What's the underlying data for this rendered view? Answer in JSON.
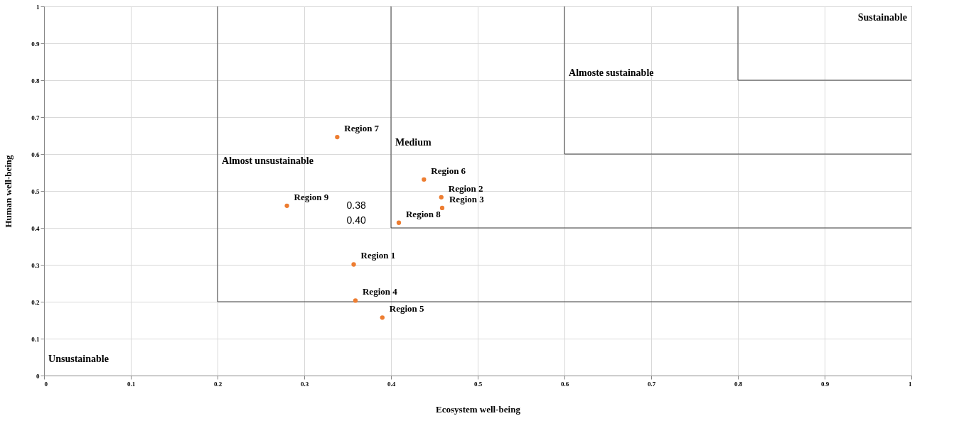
{
  "chart_data": {
    "type": "scatter",
    "xlabel": "Ecosystem well-being",
    "ylabel": "Human well-being",
    "xlim": [
      0,
      1
    ],
    "ylim": [
      0,
      1
    ],
    "xticks": [
      0,
      0.1,
      0.2,
      0.3,
      0.4,
      0.5,
      0.6,
      0.7,
      0.8,
      0.9,
      1
    ],
    "yticks": [
      0,
      0.1,
      0.2,
      0.3,
      0.4,
      0.5,
      0.6,
      0.7,
      0.8,
      0.9,
      1
    ],
    "grid": true,
    "marker": "circle",
    "series": [
      {
        "type": "line",
        "marker": "none",
        "color": "#404040",
        "x": [
          0.2,
          0.2,
          1
        ],
        "values": [
          1,
          0.2,
          0.2
        ]
      },
      {
        "type": "line",
        "marker": "none",
        "color": "#404040",
        "x": [
          0.4,
          0.4,
          1
        ],
        "values": [
          1,
          0.4,
          0.4
        ]
      },
      {
        "type": "line",
        "marker": "none",
        "color": "#404040",
        "x": [
          0.6,
          0.6,
          1
        ],
        "values": [
          1,
          0.6,
          0.6
        ]
      },
      {
        "type": "line",
        "marker": "none",
        "color": "#404040",
        "x": [
          0.8,
          0.8,
          1
        ],
        "values": [
          1,
          0.8,
          0.8
        ]
      },
      {
        "name": "Region 1",
        "color": "#ed7d31",
        "x": [
          0.357
        ],
        "values": [
          0.301
        ]
      },
      {
        "name": "Region 2",
        "color": "#ed7d31",
        "x": [
          0.458
        ],
        "values": [
          0.483
        ]
      },
      {
        "name": "Region 3",
        "color": "#ed7d31",
        "x": [
          0.459
        ],
        "values": [
          0.454
        ]
      },
      {
        "name": "Region 4",
        "color": "#ed7d31",
        "x": [
          0.359
        ],
        "values": [
          0.203
        ]
      },
      {
        "name": "Region 5",
        "color": "#ed7d31",
        "x": [
          0.39
        ],
        "values": [
          0.157
        ]
      },
      {
        "name": "Region 6",
        "color": "#ed7d31",
        "x": [
          0.438
        ],
        "values": [
          0.531
        ]
      },
      {
        "name": "Region 7",
        "color": "#ed7d31",
        "x": [
          0.338
        ],
        "values": [
          0.646
        ]
      },
      {
        "name": "Region 8",
        "color": "#ed7d31",
        "x": [
          0.409
        ],
        "values": [
          0.414
        ]
      },
      {
        "name": "Region 9",
        "color": "#ed7d31",
        "x": [
          0.28
        ],
        "values": [
          0.46
        ]
      }
    ],
    "annotations": [
      "Unsustainable",
      "Almost unsustainable",
      "Medium",
      "Almoste sustainable",
      "Sustainable",
      "0.38",
      "0.40"
    ]
  }
}
